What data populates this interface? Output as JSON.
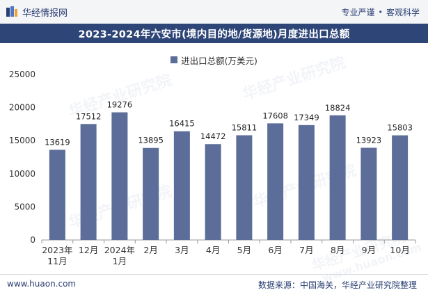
{
  "header": {
    "brand": "华经情报网",
    "tagline_left": "专业严谨",
    "tagline_right": "客观科学"
  },
  "title": "2023-2024年六安市(境内目的地/货源地)月度进出口总额",
  "footer": {
    "url": "www.huaon.com",
    "source": "数据来源：中国海关，华经产业研究院整理"
  },
  "watermark": {
    "name": "华经产业研究院",
    "url": "www.huaon.com"
  },
  "colors": {
    "bar": "#5b6d98",
    "title_bg": "#2d4577",
    "axis": "#999999"
  },
  "chart_data": {
    "type": "bar",
    "title": "2023-2024年六安市(境内目的地/货源地)月度进出口总额",
    "categories": [
      [
        "2023年",
        "11月"
      ],
      [
        "12月"
      ],
      [
        "2024年",
        "1月"
      ],
      [
        "2月"
      ],
      [
        "3月"
      ],
      [
        "4月"
      ],
      [
        "5月"
      ],
      [
        "6月"
      ],
      [
        "7月"
      ],
      [
        "8月"
      ],
      [
        "9月"
      ],
      [
        "10月"
      ]
    ],
    "series": [
      {
        "name": "进出口总额(万美元)",
        "values": [
          13619,
          17512,
          19276,
          13895,
          16415,
          14472,
          15811,
          17608,
          17349,
          18824,
          13923,
          15803
        ]
      }
    ],
    "ylim": [
      0,
      25000
    ],
    "yticks": [
      0,
      5000,
      10000,
      15000,
      20000,
      25000
    ],
    "xlabel": "",
    "ylabel": "",
    "legend": "top-center",
    "grid": false
  }
}
